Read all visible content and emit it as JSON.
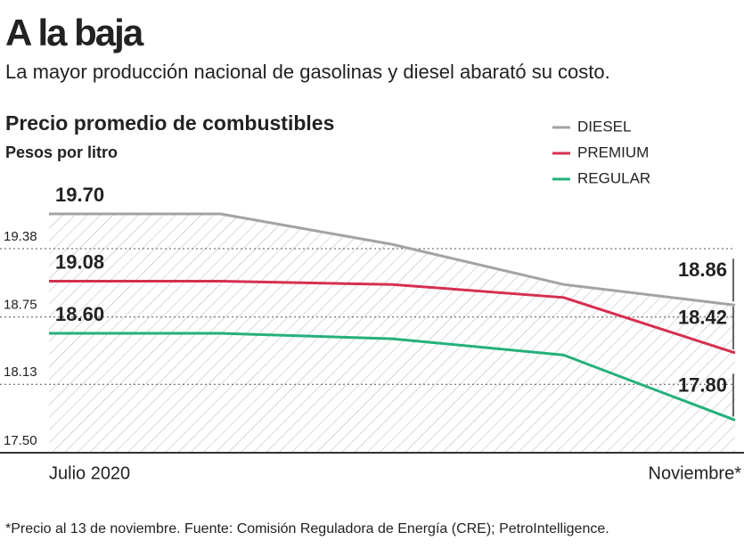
{
  "title": "A la baja",
  "subtitle": "La mayor producción nacional de gasolinas y diesel abarató su costo.",
  "footnote": "*Precio al 13 de noviembre. Fuente: Comisión Reguladora de Energía (CRE); PetroIntelligence.",
  "chart_data": {
    "type": "line",
    "title": "Precio promedio de combustibles",
    "y_label": "Pesos por litro",
    "categories": [
      "Julio 2020",
      null,
      null,
      null,
      "Noviembre*"
    ],
    "series": [
      {
        "name": "DIESEL",
        "color": "#a3a3a3",
        "values": [
          19.7,
          19.7,
          19.42,
          19.05,
          18.86
        ],
        "value_labels": [
          "19.70",
          null,
          null,
          null,
          "18.86"
        ]
      },
      {
        "name": "PREMIUM",
        "color": "#d6304f",
        "values": [
          19.08,
          19.08,
          19.05,
          18.93,
          18.42
        ],
        "value_labels": [
          "19.08",
          null,
          null,
          null,
          "18.42"
        ]
      },
      {
        "name": "REGULAR",
        "color": "#25b07a",
        "values": [
          18.6,
          18.6,
          18.55,
          18.4,
          17.8
        ],
        "value_labels": [
          "18.60",
          null,
          null,
          null,
          "17.80"
        ]
      }
    ],
    "ylim": [
      17.5,
      19.93
    ],
    "yticks": [
      {
        "value": 17.5,
        "label": "17.50"
      },
      {
        "value": 18.13,
        "label": "18.13"
      },
      {
        "value": 18.75,
        "label": "18.75"
      },
      {
        "value": 19.38,
        "label": "19.38"
      }
    ],
    "grid": true,
    "legend": "top-right"
  }
}
